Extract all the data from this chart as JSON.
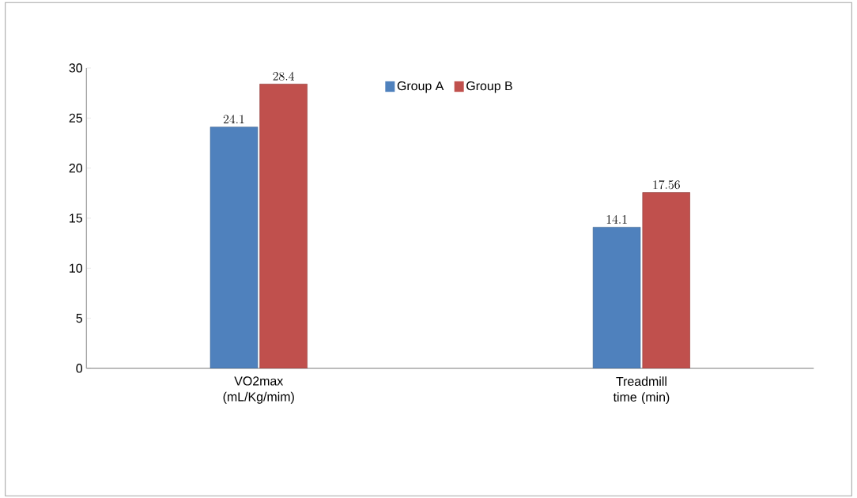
{
  "chart_data": {
    "type": "bar",
    "categories": [
      "VO2max (mL/Kg/mim)",
      "Treadmill time (min)"
    ],
    "series": [
      {
        "name": "Group A",
        "color": "#4f81bd",
        "values": [
          24.1,
          14.1
        ]
      },
      {
        "name": "Group B",
        "color": "#c0504d",
        "values": [
          28.4,
          17.56
        ]
      }
    ],
    "ylim": [
      0,
      30
    ],
    "yticks": [
      0,
      5,
      10,
      15,
      20,
      25,
      30
    ],
    "grid": false,
    "legend": "top",
    "data_labels": true
  }
}
